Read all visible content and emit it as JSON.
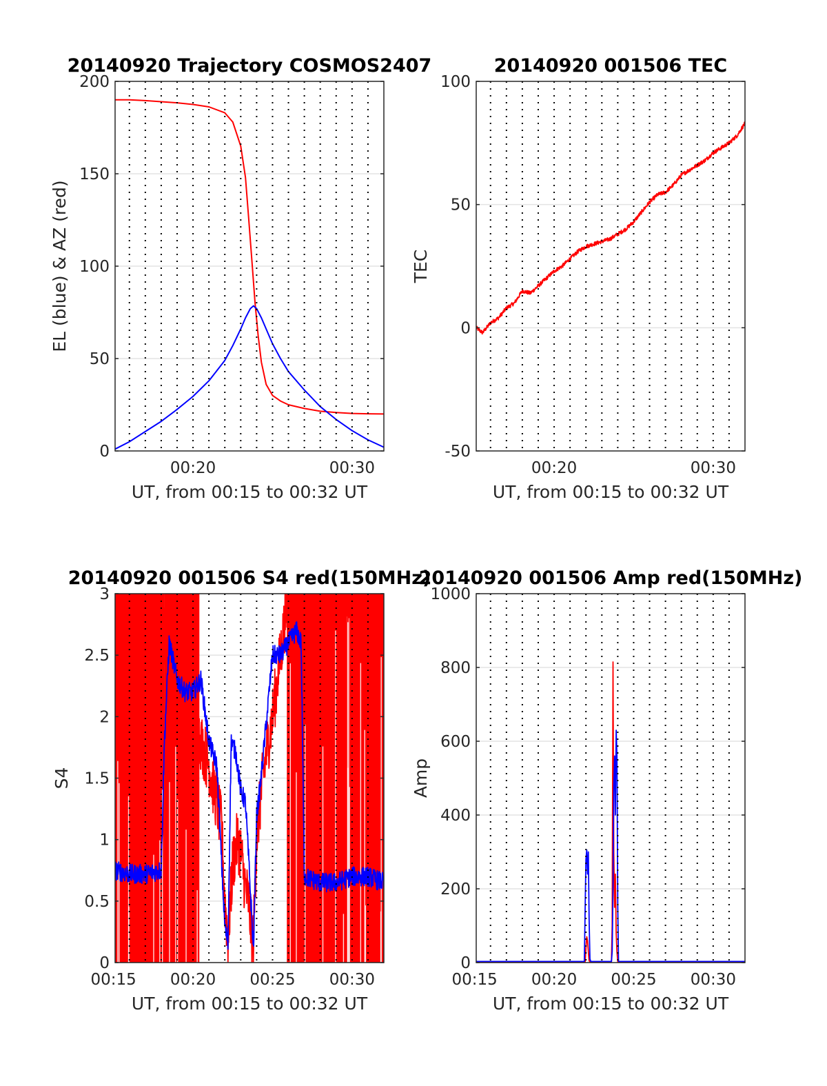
{
  "chart_data": [
    {
      "id": "traj",
      "type": "line",
      "title": "20140920 Trajectory COSMOS2407",
      "xlabel": "UT, from 00:15 to 00:32 UT",
      "ylabel": "EL (blue) & AZ (red)",
      "xlim": [
        15.1,
        32.0
      ],
      "ylim": [
        0,
        200
      ],
      "xticks": [
        {
          "v": 20,
          "label": "00:20"
        },
        {
          "v": 30,
          "label": "00:30"
        }
      ],
      "yticks": [
        {
          "v": 0,
          "label": "0"
        },
        {
          "v": 50,
          "label": "50"
        },
        {
          "v": 100,
          "label": "100"
        },
        {
          "v": 150,
          "label": "150"
        },
        {
          "v": 200,
          "label": "200"
        }
      ],
      "vgrid_minutes": [
        16,
        17,
        18,
        19,
        20,
        21,
        22,
        23,
        24,
        25,
        26,
        27,
        28,
        29,
        30,
        31
      ],
      "hgrid": true,
      "series": [
        {
          "name": "",
          "color": "#ff0000",
          "x": [
            15.1,
            16,
            17,
            18,
            19,
            20,
            21,
            22,
            22.5,
            23,
            23.3,
            23.5,
            23.7,
            23.9,
            24.1,
            24.3,
            24.6,
            25,
            25.5,
            26,
            27,
            28,
            29,
            30,
            31,
            32
          ],
          "y": [
            190,
            190,
            189.6,
            189,
            188.4,
            187.5,
            186.2,
            183,
            178,
            165,
            148,
            126,
            103,
            80,
            62,
            48,
            36,
            30,
            27,
            25,
            23,
            21.5,
            20.8,
            20.3,
            20.1,
            20
          ]
        },
        {
          "name": "",
          "color": "#0000ff",
          "x": [
            15.1,
            16,
            17,
            18,
            19,
            20,
            21,
            22,
            22.5,
            23,
            23.3,
            23.6,
            23.8,
            24,
            24.3,
            24.7,
            25,
            25.5,
            26,
            27,
            28,
            29,
            30,
            31,
            32
          ],
          "y": [
            1,
            5,
            10.5,
            16,
            22.5,
            29.5,
            38,
            49,
            57,
            66,
            72,
            77,
            78.5,
            77,
            72,
            64,
            58,
            50,
            43,
            33,
            24,
            17,
            11,
            6,
            2
          ]
        }
      ]
    },
    {
      "id": "tec",
      "type": "line",
      "title": "20140920 001506 TEC",
      "xlabel": "UT, from 00:15 to 00:32 UT",
      "ylabel": "TEC",
      "xlim": [
        15.1,
        32.0
      ],
      "ylim": [
        -50,
        100
      ],
      "xticks": [
        {
          "v": 20,
          "label": "00:20"
        },
        {
          "v": 30,
          "label": "00:30"
        }
      ],
      "yticks": [
        {
          "v": -50,
          "label": "-50"
        },
        {
          "v": 0,
          "label": "0"
        },
        {
          "v": 50,
          "label": "50"
        },
        {
          "v": 100,
          "label": "100"
        }
      ],
      "vgrid_minutes": [
        16,
        17,
        18,
        19,
        20,
        21,
        22,
        23,
        24,
        25,
        26,
        27,
        28,
        29,
        30,
        31
      ],
      "hgrid": true,
      "series": [
        {
          "name": "",
          "color": "#ff0000",
          "noise": 0.8,
          "x": [
            15.1,
            15.5,
            16,
            16.5,
            17,
            17.5,
            18,
            18.5,
            19,
            19.5,
            20,
            20.5,
            21,
            21.5,
            22,
            22.5,
            23,
            23.5,
            24,
            24.5,
            25,
            25.5,
            26,
            26.5,
            27,
            27.5,
            28,
            28.5,
            29,
            29.5,
            30,
            30.5,
            31,
            31.5,
            32
          ],
          "y": [
            0,
            -2,
            2,
            4,
            8,
            10,
            15,
            14,
            17,
            20,
            23,
            25,
            28,
            31,
            33,
            34,
            35,
            36,
            38,
            40,
            43,
            47,
            51,
            54,
            55,
            58,
            62,
            64,
            66,
            68,
            71,
            73,
            75,
            78,
            83
          ]
        }
      ]
    },
    {
      "id": "s4",
      "type": "line",
      "title": "20140920 001506 S4 red(150MHz)",
      "xlabel": "UT, from 00:15 to 00:32 UT",
      "ylabel": "S4",
      "xlim": [
        15.1,
        32.0
      ],
      "ylim": [
        0,
        3
      ],
      "xticks": [
        {
          "v": 15,
          "label": "00:15"
        },
        {
          "v": 20,
          "label": "00:20"
        },
        {
          "v": 25,
          "label": "00:25"
        },
        {
          "v": 30,
          "label": "00:30"
        }
      ],
      "yticks": [
        {
          "v": 0,
          "label": "0"
        },
        {
          "v": 0.5,
          "label": "0.5"
        },
        {
          "v": 1,
          "label": "1"
        },
        {
          "v": 1.5,
          "label": "1.5"
        },
        {
          "v": 2,
          "label": "2"
        },
        {
          "v": 2.5,
          "label": "2.5"
        },
        {
          "v": 3,
          "label": "3"
        }
      ],
      "vgrid_minutes": [
        16,
        17,
        18,
        19,
        20,
        21,
        22,
        23,
        24,
        25,
        26,
        27,
        28,
        29,
        30,
        31
      ],
      "hgrid": true,
      "red_saturated_ranges": [
        [
          15.1,
          18.2
        ],
        [
          18.2,
          20.4
        ],
        [
          25.9,
          32.0
        ]
      ],
      "series": [
        {
          "name": "",
          "color": "#ff0000",
          "noise": 0.25,
          "x": [
            15.1,
            18.0,
            18.3,
            18.6,
            19.0,
            19.5,
            20.0,
            20.5,
            21.0,
            21.5,
            21.8,
            22.0,
            22.2,
            22.5,
            22.8,
            23.0,
            23.3,
            23.5,
            23.7,
            23.8,
            24.0,
            24.3,
            24.6,
            25.0,
            25.5,
            26.0,
            26.5,
            27.0,
            32.0
          ],
          "y": [
            3,
            3,
            2.5,
            2.2,
            2.0,
            1.9,
            2.0,
            1.8,
            1.6,
            1.3,
            1.1,
            0.5,
            0.2,
            0.8,
            1.0,
            0.9,
            0.6,
            0.5,
            0.2,
            0.2,
            1.0,
            1.4,
            1.7,
            2.0,
            2.5,
            3,
            3,
            3,
            3
          ]
        },
        {
          "name": "",
          "color": "#0000ff",
          "noise": 0.08,
          "x": [
            15.1,
            16.0,
            17.0,
            18.0,
            18.2,
            18.5,
            19.0,
            19.5,
            20.0,
            20.5,
            21.0,
            21.5,
            21.8,
            22.0,
            22.2,
            22.4,
            22.7,
            23.0,
            23.3,
            23.6,
            23.8,
            24.0,
            24.2,
            24.5,
            25.0,
            25.5,
            26.0,
            26.5,
            26.8,
            27.0,
            28.0,
            29.0,
            30.0,
            31.0,
            32.0
          ],
          "y": [
            0.75,
            0.72,
            0.72,
            0.75,
            1.8,
            2.6,
            2.3,
            2.2,
            2.2,
            2.3,
            1.8,
            1.6,
            0.8,
            0.3,
            0.15,
            1.8,
            1.7,
            1.4,
            1.3,
            0.6,
            0.1,
            1.2,
            1.4,
            1.8,
            2.5,
            2.5,
            2.6,
            2.7,
            2.6,
            0.7,
            0.65,
            0.65,
            0.7,
            0.7,
            0.65
          ]
        }
      ]
    },
    {
      "id": "amp",
      "type": "line",
      "title": "20140920 001506 Amp red(150MHz)",
      "xlabel": "UT, from 00:15 to 00:32 UT",
      "ylabel": "Amp",
      "xlim": [
        15.1,
        32.0
      ],
      "ylim": [
        0,
        1000
      ],
      "xticks": [
        {
          "v": 15,
          "label": "00:15"
        },
        {
          "v": 20,
          "label": "00:20"
        },
        {
          "v": 25,
          "label": "00:25"
        },
        {
          "v": 30,
          "label": "00:30"
        }
      ],
      "yticks": [
        {
          "v": 0,
          "label": "0"
        },
        {
          "v": 200,
          "label": "200"
        },
        {
          "v": 400,
          "label": "400"
        },
        {
          "v": 600,
          "label": "600"
        },
        {
          "v": 800,
          "label": "800"
        },
        {
          "v": 1000,
          "label": "1000"
        }
      ],
      "vgrid_minutes": [
        16,
        17,
        18,
        19,
        20,
        21,
        22,
        23,
        24,
        25,
        26,
        27,
        28,
        29,
        30,
        31
      ],
      "hgrid": true,
      "series": [
        {
          "name": "",
          "color": "#ff0000",
          "x": [
            15.1,
            21.95,
            22.0,
            22.05,
            22.1,
            22.15,
            22.2,
            22.25,
            23.6,
            23.65,
            23.7,
            23.75,
            23.8,
            23.85,
            23.9,
            23.95,
            24.0,
            32.0
          ],
          "y": [
            2,
            2,
            40,
            70,
            60,
            30,
            5,
            2,
            2,
            100,
            815,
            300,
            150,
            240,
            80,
            30,
            2,
            2
          ]
        },
        {
          "name": "",
          "color": "#0000ff",
          "x": [
            15.1,
            21.9,
            21.95,
            22.0,
            22.05,
            22.1,
            22.15,
            22.2,
            22.25,
            22.3,
            23.6,
            23.65,
            23.7,
            23.75,
            23.8,
            23.85,
            23.9,
            23.95,
            24.0,
            24.05,
            32.0
          ],
          "y": [
            3,
            3,
            150,
            280,
            305,
            240,
            300,
            120,
            10,
            3,
            3,
            30,
            200,
            480,
            560,
            400,
            630,
            560,
            150,
            3,
            3
          ]
        }
      ]
    }
  ]
}
